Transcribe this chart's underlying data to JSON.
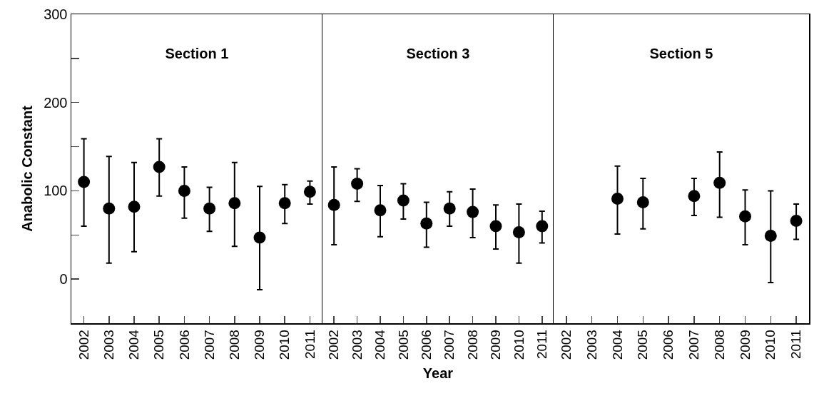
{
  "chart_data": [
    {
      "type": "scatter",
      "title": "Section 1",
      "ylabel": "Anabolic Constant",
      "categories": [
        "2002",
        "2003",
        "2004",
        "2005",
        "2006",
        "2007",
        "2008",
        "2009",
        "2010",
        "2011"
      ],
      "ylim": [
        -50,
        300
      ],
      "yticks": [
        0,
        {
          "value": 50,
          "label": null
        },
        100,
        {
          "value": 150,
          "label": null
        },
        200,
        {
          "value": 250,
          "label": null
        },
        300
      ],
      "marker": "circle",
      "series": [
        {
          "color": "#000000",
          "values": [
            110,
            80,
            82,
            127,
            100,
            80,
            86,
            47,
            86,
            99
          ],
          "errors": [
            [
              60,
              159
            ],
            [
              18,
              139
            ],
            [
              31,
              132
            ],
            [
              94,
              159
            ],
            [
              69,
              127
            ],
            [
              54,
              104
            ],
            [
              37,
              132
            ],
            [
              -12,
              105
            ],
            [
              63,
              107
            ],
            [
              85,
              111
            ]
          ]
        }
      ]
    },
    {
      "type": "scatter",
      "title": "Section 3",
      "xlabel": "Year",
      "categories": [
        "2002",
        "2003",
        "2004",
        "2005",
        "2006",
        "2007",
        "2008",
        "2009",
        "2010",
        "2011"
      ],
      "ylim": [
        -50,
        300
      ],
      "tick_labels": "x",
      "marker": "circle",
      "series": [
        {
          "color": "#000000",
          "values": [
            84,
            108,
            78,
            89,
            63,
            80,
            76,
            60,
            53,
            60
          ],
          "errors": [
            [
              39,
              127
            ],
            [
              88,
              125
            ],
            [
              48,
              106
            ],
            [
              68,
              108
            ],
            [
              36,
              87
            ],
            [
              60,
              99
            ],
            [
              47,
              102
            ],
            [
              34,
              84
            ],
            [
              18,
              85
            ],
            [
              41,
              77
            ]
          ]
        }
      ]
    },
    {
      "type": "scatter",
      "title": "Section 5",
      "categories": [
        "2002",
        "2003",
        "2004",
        "2005",
        "2006",
        "2007",
        "2008",
        "2009",
        "2010",
        "2011"
      ],
      "ylim": [
        -50,
        300
      ],
      "tick_labels": "x",
      "marker": "circle",
      "series": [
        {
          "color": "#000000",
          "values": [
            null,
            null,
            91,
            87,
            null,
            94,
            109,
            71,
            49,
            66
          ],
          "errors": [
            null,
            null,
            [
              51,
              128
            ],
            [
              57,
              114
            ],
            null,
            [
              72,
              114
            ],
            [
              70,
              144
            ],
            [
              39,
              101
            ],
            [
              -4,
              100
            ],
            [
              45,
              85
            ]
          ]
        }
      ]
    }
  ]
}
